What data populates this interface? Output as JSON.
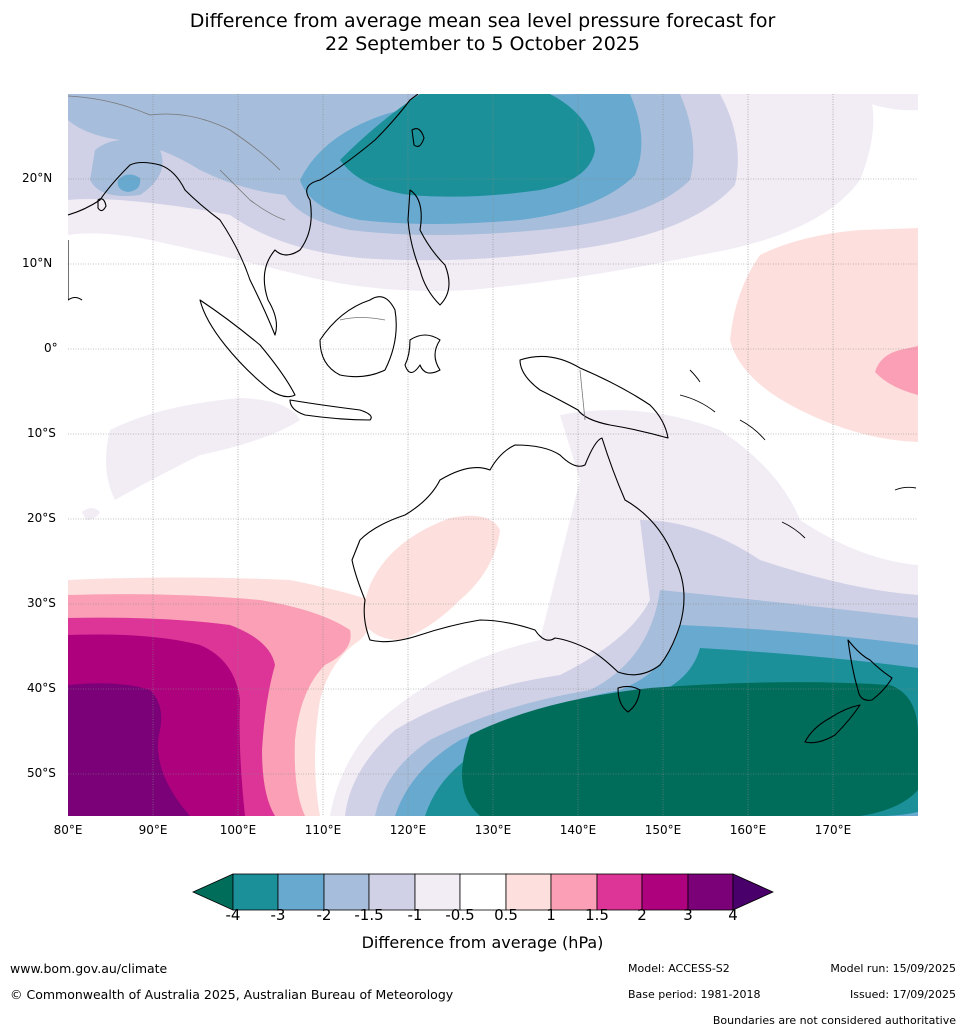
{
  "title_line1": "Difference from average mean sea level pressure forecast for",
  "title_line2": "22 September to 5 October 2025",
  "lat_labels": [
    "20°N",
    "10°N",
    "0°",
    "10°S",
    "20°S",
    "30°S",
    "40°S",
    "50°S"
  ],
  "lon_labels": [
    "80°E",
    "90°E",
    "100°E",
    "110°E",
    "120°E",
    "130°E",
    "140°E",
    "150°E",
    "160°E",
    "170°E"
  ],
  "colorbar": {
    "title": "Difference from average (hPa)",
    "ticks": [
      "-4",
      "-3",
      "-2",
      "-1.5",
      "-1",
      "-0.5",
      "0.5",
      "1",
      "1.5",
      "2",
      "3",
      "4"
    ],
    "colors": [
      "#006d5b",
      "#1b9099",
      "#67a9cf",
      "#a6bddb",
      "#d0d1e6",
      "#f2ecf5",
      "#ffffff",
      "#fde0dd",
      "#fa9fb5",
      "#dd3497",
      "#ae017e",
      "#7a0177",
      "#49006a"
    ]
  },
  "footer": {
    "website": "www.bom.gov.au/climate",
    "copyright": "© Commonwealth of Australia 2025, Australian Bureau of Meteorology",
    "model": "Model: ACCESS-S2",
    "base_period": "Base period: 1981-2018",
    "model_run": "Model run: 15/09/2025",
    "issued": "Issued: 17/09/2025",
    "disclaimer": "Boundaries are not considered authoritative"
  }
}
